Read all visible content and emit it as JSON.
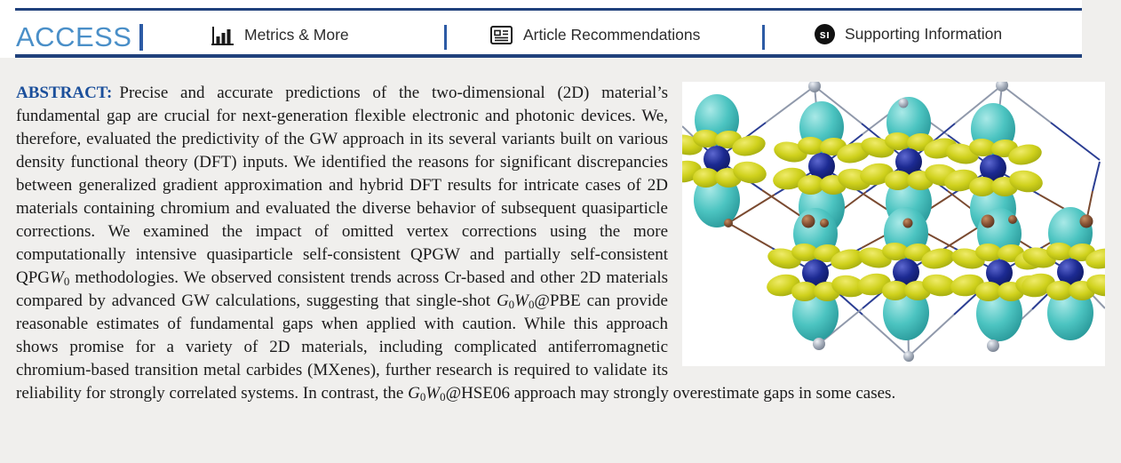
{
  "page": {
    "background": "#f0efed"
  },
  "header": {
    "rule_color": "#20417c",
    "access": {
      "label": "ACCESS",
      "color": "#4a8fc8"
    },
    "items": [
      {
        "label": "Metrics & More",
        "icon": "bar-chart-icon"
      },
      {
        "label": "Article Recommendations",
        "icon": "article-icon"
      },
      {
        "label": "Supporting Information",
        "icon": "si-badge-icon",
        "badge_text": "sı"
      }
    ]
  },
  "abstract": {
    "label_color": "#1b4f9b",
    "segments": [
      {
        "s": "label",
        "t": "ABSTRACT:"
      },
      {
        "s": "n",
        "t": "Precise and accurate predictions of the two-dimensional (2D) material’s fundamental gap are crucial for next-generation flexible electronic and photonic devices. We, therefore, evaluated the predictivity of the GW approach in its several variants built on various density functional theory (DFT) inputs. We identified the reasons for significant discrepancies between generalized gradient approximation and hybrid DFT results for intricate cases of 2D materials containing chromium and evaluated the diverse behavior of subsequent quasiparticle corrections. We examined the impact of omitted vertex corrections using the more computationally intensive quasiparticle self-consistent QPGW and partially self-consistent QPG"
      },
      {
        "s": "i",
        "t": "W"
      },
      {
        "s": "sub",
        "t": "0"
      },
      {
        "s": "n",
        "t": " methodologies. We observed consistent trends across Cr-based and other 2D materials compared by advanced GW calculations, suggesting that single-shot "
      },
      {
        "s": "i",
        "t": "G"
      },
      {
        "s": "sub",
        "t": "0"
      },
      {
        "s": "i",
        "t": "W"
      },
      {
        "s": "sub",
        "t": "0"
      },
      {
        "s": "n",
        "t": "@PBE can provide reasonable estimates of fundamental gaps when applied with caution. While this approach shows promise for a variety of 2D materials, including complicated antiferromagnetic chromium-based transition metal carbides (MXenes), further research is required to validate its reliability for strongly correlated systems. In contrast, the "
      },
      {
        "s": "i",
        "t": "G"
      },
      {
        "s": "sub",
        "t": "0"
      },
      {
        "s": "i",
        "t": "W"
      },
      {
        "s": "sub",
        "t": "0"
      },
      {
        "s": "n",
        "t": "@HSE06 approach may strongly overestimate gaps in some cases."
      }
    ]
  },
  "figure": {
    "colors": {
      "yellow_lobes": "#cfd11c",
      "cyan_lobes": "#4cc4c1",
      "metal_atoms_navy": "#1c2a92",
      "outer_atoms_gray": "#a8b0bd",
      "middle_atoms_brown": "#8a5536",
      "panel_background": "#ffffff"
    }
  }
}
